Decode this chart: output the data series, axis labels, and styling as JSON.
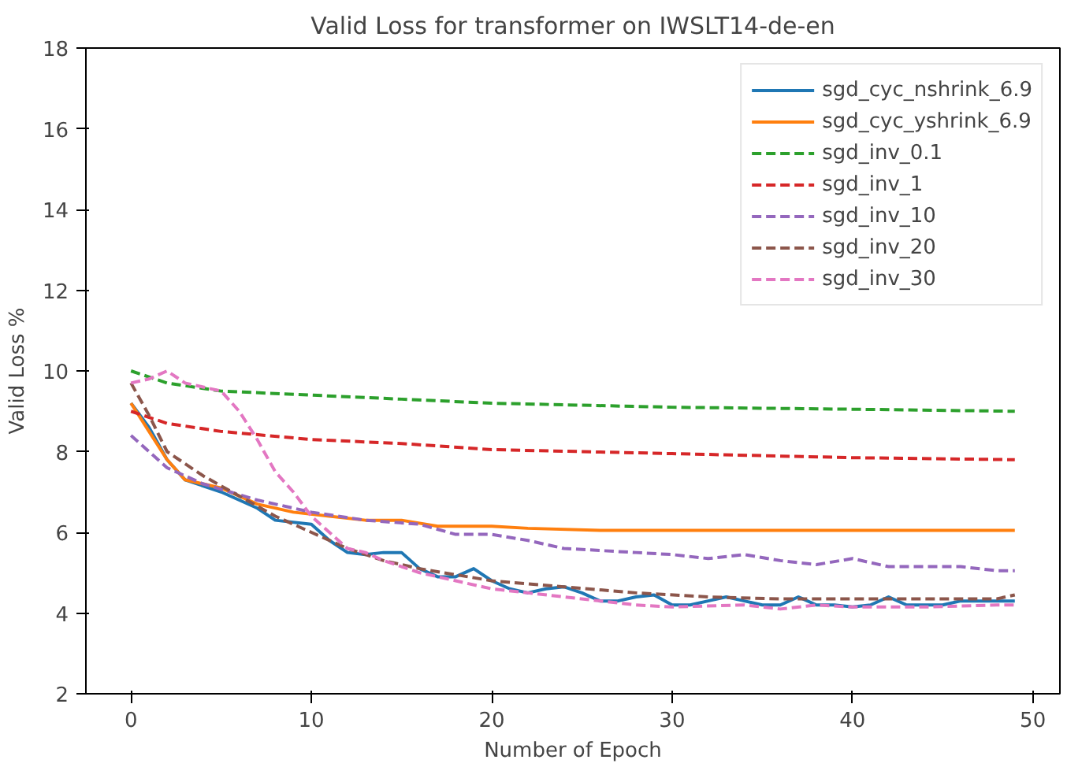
{
  "chart_data": {
    "type": "line",
    "title": "Valid Loss for transformer on IWSLT14-de-en",
    "xlabel": "Number of Epoch",
    "ylabel": "Valid Loss %",
    "xlim": [
      -2.5,
      51.5
    ],
    "ylim": [
      2,
      18
    ],
    "xticks": [
      0,
      10,
      20,
      30,
      40,
      50
    ],
    "yticks": [
      2,
      4,
      6,
      8,
      10,
      12,
      14,
      16,
      18
    ],
    "grid": false,
    "legend": "top right",
    "series": [
      {
        "name": "sgd_cyc_nshrink_6.9",
        "color": "#1f77b4",
        "line_style": "solid",
        "x": [
          0,
          1,
          2,
          3,
          5,
          7,
          8,
          10,
          11,
          12,
          13,
          14,
          15,
          16,
          17,
          18,
          19,
          20,
          21,
          22,
          23,
          24,
          25,
          26,
          27,
          28,
          29,
          30,
          31,
          32,
          33,
          34,
          35,
          36,
          37,
          38,
          39,
          40,
          41,
          42,
          43,
          44,
          45,
          46,
          47,
          48,
          49
        ],
        "values": [
          9.2,
          8.6,
          7.8,
          7.3,
          7.0,
          6.6,
          6.3,
          6.2,
          5.8,
          5.5,
          5.45,
          5.5,
          5.5,
          5.1,
          4.9,
          4.9,
          5.1,
          4.8,
          4.6,
          4.5,
          4.6,
          4.65,
          4.5,
          4.3,
          4.3,
          4.4,
          4.45,
          4.2,
          4.2,
          4.3,
          4.4,
          4.3,
          4.2,
          4.2,
          4.4,
          4.2,
          4.2,
          4.15,
          4.2,
          4.4,
          4.2,
          4.2,
          4.2,
          4.3,
          4.3,
          4.3,
          4.3
        ]
      },
      {
        "name": "sgd_cyc_yshrink_6.9",
        "color": "#ff7f0e",
        "line_style": "solid",
        "x": [
          0,
          1,
          2,
          3,
          5,
          7,
          9,
          11,
          13,
          15,
          17,
          20,
          22,
          26,
          30,
          40,
          49
        ],
        "values": [
          9.2,
          8.5,
          7.8,
          7.3,
          7.1,
          6.7,
          6.5,
          6.4,
          6.3,
          6.3,
          6.15,
          6.15,
          6.1,
          6.05,
          6.05,
          6.05,
          6.05
        ]
      },
      {
        "name": "sgd_inv_0.1",
        "color": "#2ca02c",
        "line_style": "dashed",
        "x": [
          0,
          2,
          5,
          10,
          15,
          20,
          30,
          40,
          49
        ],
        "values": [
          10.0,
          9.7,
          9.5,
          9.4,
          9.3,
          9.2,
          9.1,
          9.05,
          9.0
        ]
      },
      {
        "name": "sgd_inv_1",
        "color": "#d62728",
        "line_style": "dashed",
        "x": [
          0,
          2,
          5,
          10,
          15,
          20,
          30,
          40,
          49
        ],
        "values": [
          9.0,
          8.7,
          8.5,
          8.3,
          8.2,
          8.05,
          7.95,
          7.85,
          7.8
        ]
      },
      {
        "name": "sgd_inv_10",
        "color": "#9467bd",
        "line_style": "dashed",
        "x": [
          0,
          2,
          4,
          7,
          10,
          13,
          16,
          18,
          20,
          22,
          24,
          26,
          28,
          30,
          32,
          34,
          36,
          38,
          40,
          42,
          44,
          46,
          48,
          49
        ],
        "values": [
          8.4,
          7.6,
          7.2,
          6.8,
          6.5,
          6.3,
          6.2,
          5.95,
          5.95,
          5.8,
          5.6,
          5.55,
          5.5,
          5.45,
          5.35,
          5.45,
          5.3,
          5.2,
          5.35,
          5.15,
          5.15,
          5.15,
          5.05,
          5.05
        ]
      },
      {
        "name": "sgd_inv_20",
        "color": "#8c564b",
        "line_style": "dashed",
        "x": [
          0,
          1,
          2,
          4,
          6,
          8,
          10,
          12,
          14,
          16,
          18,
          20,
          24,
          28,
          32,
          36,
          40,
          44,
          48,
          49
        ],
        "values": [
          9.7,
          8.9,
          8.0,
          7.4,
          6.9,
          6.4,
          6.0,
          5.6,
          5.3,
          5.1,
          4.95,
          4.8,
          4.65,
          4.5,
          4.4,
          4.35,
          4.35,
          4.35,
          4.35,
          4.45
        ]
      },
      {
        "name": "sgd_inv_30",
        "color": "#e377c2",
        "line_style": "dashed",
        "x": [
          0,
          1,
          2,
          3,
          4,
          5,
          6,
          7,
          8,
          9,
          10,
          11,
          12,
          13,
          14,
          16,
          18,
          20,
          22,
          24,
          26,
          28,
          30,
          34,
          36,
          38,
          40,
          44,
          48,
          49
        ],
        "values": [
          9.7,
          9.8,
          10.0,
          9.7,
          9.6,
          9.5,
          9.0,
          8.3,
          7.5,
          7.0,
          6.4,
          6.0,
          5.6,
          5.5,
          5.3,
          5.0,
          4.8,
          4.6,
          4.5,
          4.4,
          4.3,
          4.2,
          4.15,
          4.2,
          4.1,
          4.2,
          4.15,
          4.15,
          4.2,
          4.2
        ]
      }
    ]
  }
}
